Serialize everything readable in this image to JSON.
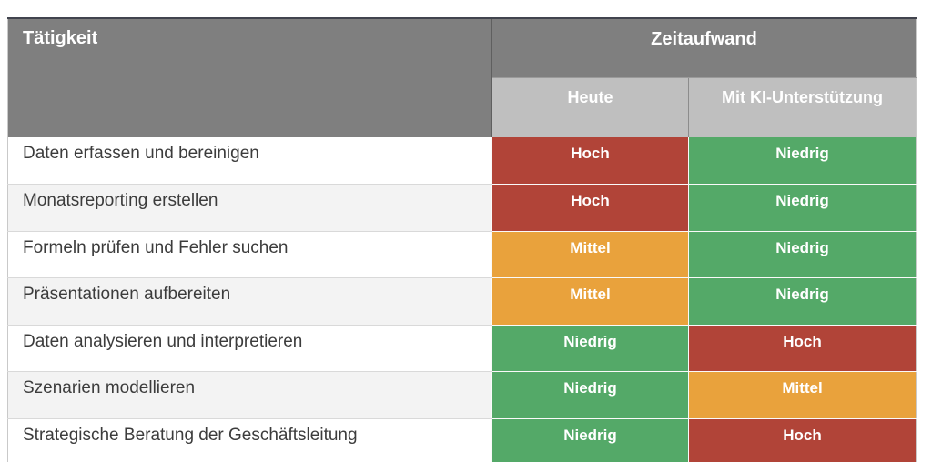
{
  "table": {
    "col1_header": "Tätigkeit",
    "group_header": "Zeitaufwand",
    "sub_headers": {
      "today": "Heute",
      "with_ai": "Mit KI-Unterstützung"
    }
  },
  "rows": [
    {
      "task": "Daten erfassen und bereinigen",
      "heute": "Hoch",
      "mit_ki": "Niedrig"
    },
    {
      "task": "Monatsreporting erstellen",
      "heute": "Hoch",
      "mit_ki": "Niedrig"
    },
    {
      "task": "Formeln prüfen und Fehler suchen",
      "heute": "Mittel",
      "mit_ki": "Niedrig"
    },
    {
      "task": "Präsentationen aufbereiten",
      "heute": "Mittel",
      "mit_ki": "Niedrig"
    },
    {
      "task": "Daten analysieren und interpretieren",
      "heute": "Niedrig",
      "mit_ki": "Hoch"
    },
    {
      "task": "Szenarien modellieren",
      "heute": "Niedrig",
      "mit_ki": "Mittel"
    },
    {
      "task": "Strategische Beratung der Geschäftsleitung",
      "heute": "Niedrig",
      "mit_ki": "Hoch"
    }
  ],
  "colors": {
    "header_bg": "#7f7f7f",
    "subheader_bg": "#bfbfbf",
    "level_hoch": "#b14438",
    "level_mittel": "#e9a23c",
    "level_niedrig": "#54a968",
    "row_alt_bg": "#f3f3f3",
    "header_text": "#ffffff",
    "task_text": "#3c3c3c"
  },
  "chart_data": {
    "type": "table",
    "title": "",
    "column_groups": [
      "Tätigkeit",
      "Zeitaufwand"
    ],
    "columns": [
      "Tätigkeit",
      "Heute",
      "Mit KI-Unterstützung"
    ],
    "value_scale": [
      "Niedrig",
      "Mittel",
      "Hoch"
    ],
    "value_colors": {
      "Hoch": "#b14438",
      "Mittel": "#e9a23c",
      "Niedrig": "#54a968"
    },
    "rows": [
      [
        "Daten erfassen und bereinigen",
        "Hoch",
        "Niedrig"
      ],
      [
        "Monatsreporting erstellen",
        "Hoch",
        "Niedrig"
      ],
      [
        "Formeln prüfen und Fehler suchen",
        "Mittel",
        "Niedrig"
      ],
      [
        "Präsentationen aufbereiten",
        "Mittel",
        "Niedrig"
      ],
      [
        "Daten analysieren und interpretieren",
        "Niedrig",
        "Hoch"
      ],
      [
        "Szenarien modellieren",
        "Niedrig",
        "Mittel"
      ],
      [
        "Strategische Beratung der Geschäftsleitung",
        "Niedrig",
        "Hoch"
      ]
    ]
  }
}
